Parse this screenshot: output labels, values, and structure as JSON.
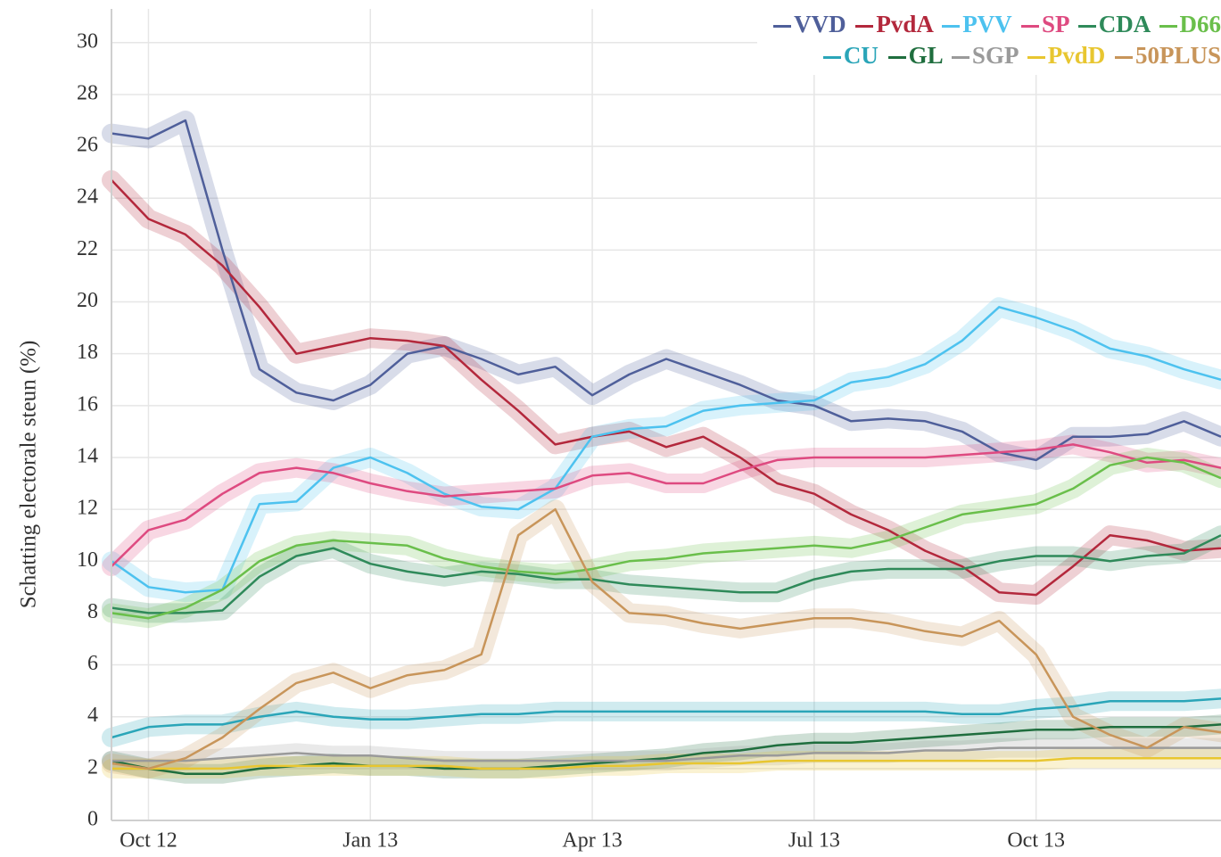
{
  "chart_data": {
    "type": "line",
    "y_label": "Schatting electorale steun (%)",
    "categories": [
      null,
      "Oct 12",
      null,
      null,
      null,
      null,
      null,
      "Jan 13",
      null,
      null,
      null,
      null,
      null,
      "Apr 13",
      null,
      null,
      null,
      null,
      null,
      "Jul 13",
      null,
      null,
      null,
      null,
      null,
      "Oct 13",
      null,
      null,
      null,
      null,
      null
    ],
    "ylim": [
      0,
      31.3
    ],
    "yticks": [
      0,
      2,
      4,
      6,
      8,
      10,
      12,
      14,
      16,
      18,
      20,
      22,
      24,
      26,
      28,
      30
    ],
    "grid": true,
    "legend": "top-right",
    "series": [
      {
        "name": "VVD",
        "color": "#4f5f9a",
        "values": [
          26.5,
          26.3,
          27.0,
          22.0,
          17.4,
          16.5,
          16.2,
          16.8,
          18.0,
          18.3,
          17.8,
          17.2,
          17.5,
          16.4,
          17.2,
          17.8,
          17.3,
          16.8,
          16.2,
          16.0,
          15.4,
          15.5,
          15.4,
          15.0,
          14.2,
          13.9,
          14.8,
          14.8,
          14.9,
          15.4,
          14.8
        ]
      },
      {
        "name": "PvdA",
        "color": "#b3283c",
        "values": [
          24.7,
          23.2,
          22.6,
          21.4,
          19.8,
          18.0,
          18.3,
          18.6,
          18.5,
          18.3,
          17.0,
          15.8,
          14.5,
          14.8,
          15.0,
          14.4,
          14.8,
          14.0,
          13.0,
          12.6,
          11.8,
          11.2,
          10.4,
          9.8,
          8.8,
          8.7,
          9.8,
          11.0,
          10.8,
          10.4,
          10.5
        ]
      },
      {
        "name": "PVV",
        "color": "#4dc2ef",
        "values": [
          10.0,
          9.0,
          8.8,
          8.9,
          12.2,
          12.3,
          13.6,
          14.0,
          13.4,
          12.6,
          12.1,
          12.0,
          12.8,
          14.8,
          15.1,
          15.2,
          15.8,
          16.0,
          16.1,
          16.2,
          16.9,
          17.1,
          17.6,
          18.5,
          19.8,
          19.4,
          18.9,
          18.2,
          17.9,
          17.4,
          17.0
        ]
      },
      {
        "name": "SP",
        "color": "#de4a80",
        "values": [
          9.8,
          11.2,
          11.6,
          12.6,
          13.4,
          13.6,
          13.4,
          13.0,
          12.7,
          12.5,
          12.6,
          12.7,
          12.8,
          13.3,
          13.4,
          13.0,
          13.0,
          13.5,
          13.9,
          14.0,
          14.0,
          14.0,
          14.0,
          14.1,
          14.2,
          14.3,
          14.5,
          14.2,
          13.8,
          13.9,
          13.6
        ]
      },
      {
        "name": "CDA",
        "color": "#2f8a5a",
        "values": [
          8.2,
          8.0,
          8.0,
          8.1,
          9.4,
          10.2,
          10.5,
          9.9,
          9.6,
          9.4,
          9.6,
          9.5,
          9.3,
          9.3,
          9.1,
          9.0,
          8.9,
          8.8,
          8.8,
          9.3,
          9.6,
          9.7,
          9.7,
          9.7,
          10.0,
          10.2,
          10.2,
          10.0,
          10.2,
          10.3,
          11.0
        ]
      },
      {
        "name": "D66",
        "color": "#6abf4b",
        "values": [
          8.0,
          7.8,
          8.2,
          8.9,
          10.0,
          10.6,
          10.8,
          10.7,
          10.6,
          10.1,
          9.8,
          9.6,
          9.5,
          9.7,
          10.0,
          10.1,
          10.3,
          10.4,
          10.5,
          10.6,
          10.5,
          10.8,
          11.3,
          11.8,
          12.0,
          12.2,
          12.8,
          13.7,
          14.0,
          13.8,
          13.2
        ]
      },
      {
        "name": "CU",
        "color": "#2aa5b8",
        "values": [
          3.2,
          3.6,
          3.7,
          3.7,
          4.0,
          4.2,
          4.0,
          3.9,
          3.9,
          4.0,
          4.1,
          4.1,
          4.2,
          4.2,
          4.2,
          4.2,
          4.2,
          4.2,
          4.2,
          4.2,
          4.2,
          4.2,
          4.2,
          4.1,
          4.1,
          4.3,
          4.4,
          4.6,
          4.6,
          4.6,
          4.7
        ]
      },
      {
        "name": "GL",
        "color": "#1f6e3e",
        "values": [
          2.3,
          2.0,
          1.8,
          1.8,
          2.0,
          2.1,
          2.2,
          2.1,
          2.1,
          2.0,
          2.0,
          2.0,
          2.1,
          2.2,
          2.3,
          2.4,
          2.6,
          2.7,
          2.9,
          3.0,
          3.0,
          3.1,
          3.2,
          3.3,
          3.4,
          3.5,
          3.5,
          3.6,
          3.6,
          3.6,
          3.7
        ]
      },
      {
        "name": "SGP",
        "color": "#9a9a9a",
        "values": [
          2.3,
          2.3,
          2.3,
          2.4,
          2.5,
          2.6,
          2.5,
          2.5,
          2.4,
          2.3,
          2.3,
          2.3,
          2.3,
          2.3,
          2.3,
          2.3,
          2.4,
          2.5,
          2.5,
          2.6,
          2.6,
          2.6,
          2.7,
          2.7,
          2.8,
          2.8,
          2.8,
          2.8,
          2.8,
          2.8,
          2.8
        ]
      },
      {
        "name": "PvdD",
        "color": "#e8c630",
        "values": [
          2.0,
          2.0,
          2.0,
          2.0,
          2.1,
          2.1,
          2.1,
          2.1,
          2.1,
          2.1,
          2.0,
          2.0,
          2.0,
          2.1,
          2.1,
          2.2,
          2.2,
          2.2,
          2.3,
          2.3,
          2.3,
          2.3,
          2.3,
          2.3,
          2.3,
          2.3,
          2.4,
          2.4,
          2.4,
          2.4,
          2.4
        ]
      },
      {
        "name": "50PLUS",
        "color": "#c8955a",
        "values": [
          2.2,
          2.0,
          2.4,
          3.2,
          4.3,
          5.3,
          5.7,
          5.1,
          5.6,
          5.8,
          6.4,
          11.0,
          12.0,
          9.2,
          8.0,
          7.9,
          7.6,
          7.4,
          7.6,
          7.8,
          7.8,
          7.6,
          7.3,
          7.1,
          7.7,
          6.4,
          4.0,
          3.3,
          2.8,
          3.6,
          3.4
        ]
      }
    ]
  }
}
